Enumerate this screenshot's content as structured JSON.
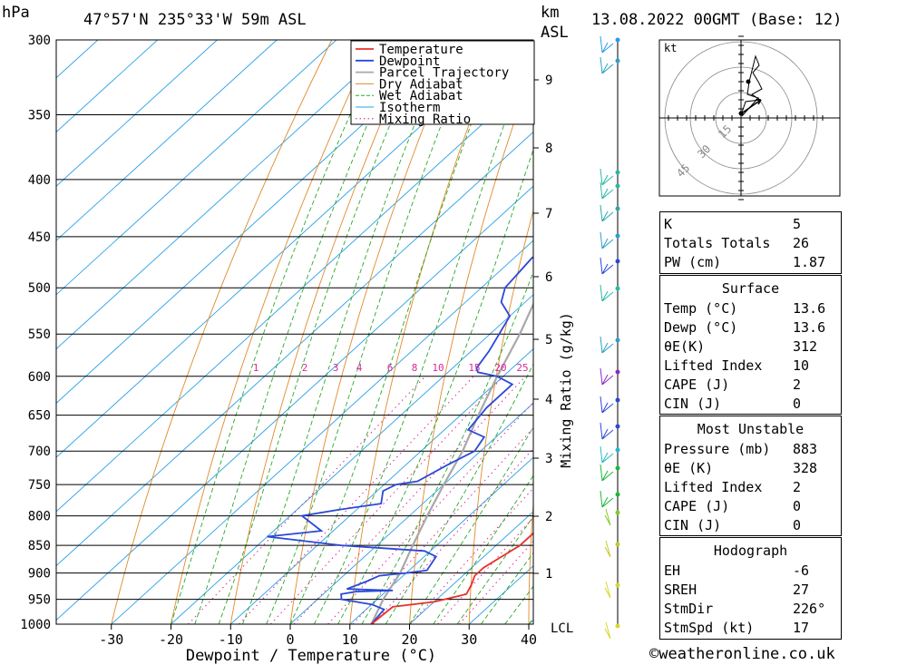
{
  "header": {
    "unit_left": "hPa",
    "location": "47°57'N 235°33'W 59m ASL",
    "unit_right_1": "km",
    "unit_right_2": "ASL",
    "datetime": "13.08.2022 00GMT (Base: 12)"
  },
  "chart_data": {
    "type": "line",
    "title": "",
    "xlabel": "Dewpoint / Temperature (°C)",
    "ylabel": "hPa",
    "right_axis_label": "Mixing Ratio (g/kg)",
    "xlim": [
      -40,
      40
    ],
    "ylim": [
      1000,
      300
    ],
    "x_ticks": [
      "-30",
      "-20",
      "-10",
      "0",
      "10",
      "20",
      "30",
      "40"
    ],
    "pressure_ticks": [
      "300",
      "350",
      "400",
      "450",
      "500",
      "550",
      "600",
      "650",
      "700",
      "750",
      "800",
      "850",
      "900",
      "950",
      "1000"
    ],
    "height_ticks": [
      "1",
      "2",
      "3",
      "4",
      "5",
      "6",
      "7",
      "8",
      "9"
    ],
    "lcl_label": "LCL",
    "mixing_ratio_labels": [
      "1",
      "2",
      "3",
      "4",
      "6",
      "8",
      "10",
      "15",
      "20",
      "25"
    ],
    "legend": [
      "Temperature",
      "Dewpoint",
      "Parcel Trajectory",
      "Dry Adiabat",
      "Wet Adiabat",
      "Isotherm",
      "Mixing Ratio"
    ],
    "legend_position": "top-right",
    "colors": {
      "temperature": "#e8302a",
      "dewpoint": "#2a48d8",
      "parcel": "#a8a8a8",
      "dry": "#e08a2a",
      "wet": "#2aa82a",
      "iso": "#2aa0e8",
      "mixing": "#d82a9a"
    },
    "series": [
      {
        "name": "Temperature",
        "points": [
          [
            13.6,
            1000
          ],
          [
            14,
            965
          ],
          [
            20,
            955
          ],
          [
            24,
            940
          ],
          [
            23,
            920
          ],
          [
            22,
            905
          ],
          [
            22,
            890
          ],
          [
            23,
            870
          ],
          [
            24,
            850
          ],
          [
            24,
            830
          ],
          [
            23,
            800
          ],
          [
            21,
            770
          ],
          [
            18,
            740
          ],
          [
            15,
            710
          ],
          [
            12,
            690
          ],
          [
            10,
            660
          ],
          [
            7,
            630
          ],
          [
            5,
            600
          ],
          [
            3,
            580
          ],
          [
            1,
            560
          ],
          [
            -2,
            535
          ],
          [
            -5,
            510
          ],
          [
            -6,
            500
          ],
          [
            -8,
            480
          ],
          [
            -11,
            455
          ],
          [
            -14,
            430
          ],
          [
            -17,
            410
          ],
          [
            -20,
            390
          ],
          [
            -23,
            370
          ],
          [
            -26,
            350
          ],
          [
            -28,
            340
          ],
          [
            -30,
            320
          ],
          [
            -32,
            300
          ]
        ]
      },
      {
        "name": "Dewpoint",
        "points": [
          [
            13.6,
            1000
          ],
          [
            13,
            970
          ],
          [
            10,
            960
          ],
          [
            4,
            950
          ],
          [
            3,
            940
          ],
          [
            5,
            935
          ],
          [
            11,
            933
          ],
          [
            3,
            930
          ],
          [
            5,
            915
          ],
          [
            6,
            905
          ],
          [
            10,
            900
          ],
          [
            13,
            895
          ],
          [
            12,
            870
          ],
          [
            9,
            860
          ],
          [
            -6,
            850
          ],
          [
            -20,
            835
          ],
          [
            -12,
            825
          ],
          [
            -18,
            800
          ],
          [
            -13,
            790
          ],
          [
            -7,
            780
          ],
          [
            -9,
            760
          ],
          [
            -8,
            750
          ],
          [
            -5,
            745
          ],
          [
            -3,
            720
          ],
          [
            -1,
            700
          ],
          [
            -2,
            680
          ],
          [
            -6,
            670
          ],
          [
            -7,
            640
          ],
          [
            -7,
            610
          ],
          [
            -11,
            600
          ],
          [
            -15,
            595
          ],
          [
            -16,
            590
          ],
          [
            -17,
            570
          ],
          [
            -20,
            530
          ],
          [
            -24,
            515
          ],
          [
            -26,
            500
          ],
          [
            -27,
            470
          ],
          [
            -26,
            460
          ],
          [
            -22,
            450
          ],
          [
            -24,
            430
          ],
          [
            -27,
            400
          ],
          [
            -29,
            380
          ],
          [
            -31,
            350
          ],
          [
            -33,
            320
          ],
          [
            -33,
            305
          ],
          [
            -33,
            300
          ]
        ]
      },
      {
        "name": "Parcel Trajectory",
        "points": [
          [
            13.6,
            1000
          ],
          [
            11,
            950
          ],
          [
            9,
            900
          ],
          [
            6,
            850
          ],
          [
            3,
            800
          ],
          [
            0,
            750
          ],
          [
            -3,
            700
          ],
          [
            -7,
            650
          ],
          [
            -11,
            600
          ],
          [
            -15,
            550
          ],
          [
            -20,
            500
          ],
          [
            -25,
            450
          ],
          [
            -31,
            400
          ],
          [
            -38,
            350
          ],
          [
            -45,
            300
          ]
        ]
      }
    ],
    "wind_profile_note": "wind barbs along right column"
  },
  "hodograph": {
    "unit": "kt",
    "ring_labels": [
      "15",
      "30",
      "45"
    ]
  },
  "indices": {
    "rows": [
      {
        "label": "K",
        "value": "5"
      },
      {
        "label": "Totals Totals",
        "value": "26"
      },
      {
        "label": "PW (cm)",
        "value": "1.87"
      }
    ]
  },
  "surface": {
    "title": "Surface",
    "rows": [
      {
        "label": "Temp (°C)",
        "value": "13.6"
      },
      {
        "label": "Dewp (°C)",
        "value": "13.6"
      },
      {
        "label": "θE(K)",
        "value": "312"
      },
      {
        "label": "Lifted Index",
        "value": "10"
      },
      {
        "label": "CAPE (J)",
        "value": "2"
      },
      {
        "label": "CIN (J)",
        "value": "0"
      }
    ]
  },
  "most_unstable": {
    "title": "Most Unstable",
    "rows": [
      {
        "label": "Pressure (mb)",
        "value": "883"
      },
      {
        "label": "θE (K)",
        "value": "328"
      },
      {
        "label": "Lifted Index",
        "value": "2"
      },
      {
        "label": "CAPE (J)",
        "value": "0"
      },
      {
        "label": "CIN (J)",
        "value": "0"
      }
    ]
  },
  "hodograph_stats": {
    "title": "Hodograph",
    "rows": [
      {
        "label": "EH",
        "value": "-6"
      },
      {
        "label": "SREH",
        "value": "27"
      },
      {
        "label": "StmDir",
        "value": "226°"
      },
      {
        "label": "StmSpd (kt)",
        "value": "17"
      }
    ]
  },
  "credit": "©weatheronline.co.uk"
}
